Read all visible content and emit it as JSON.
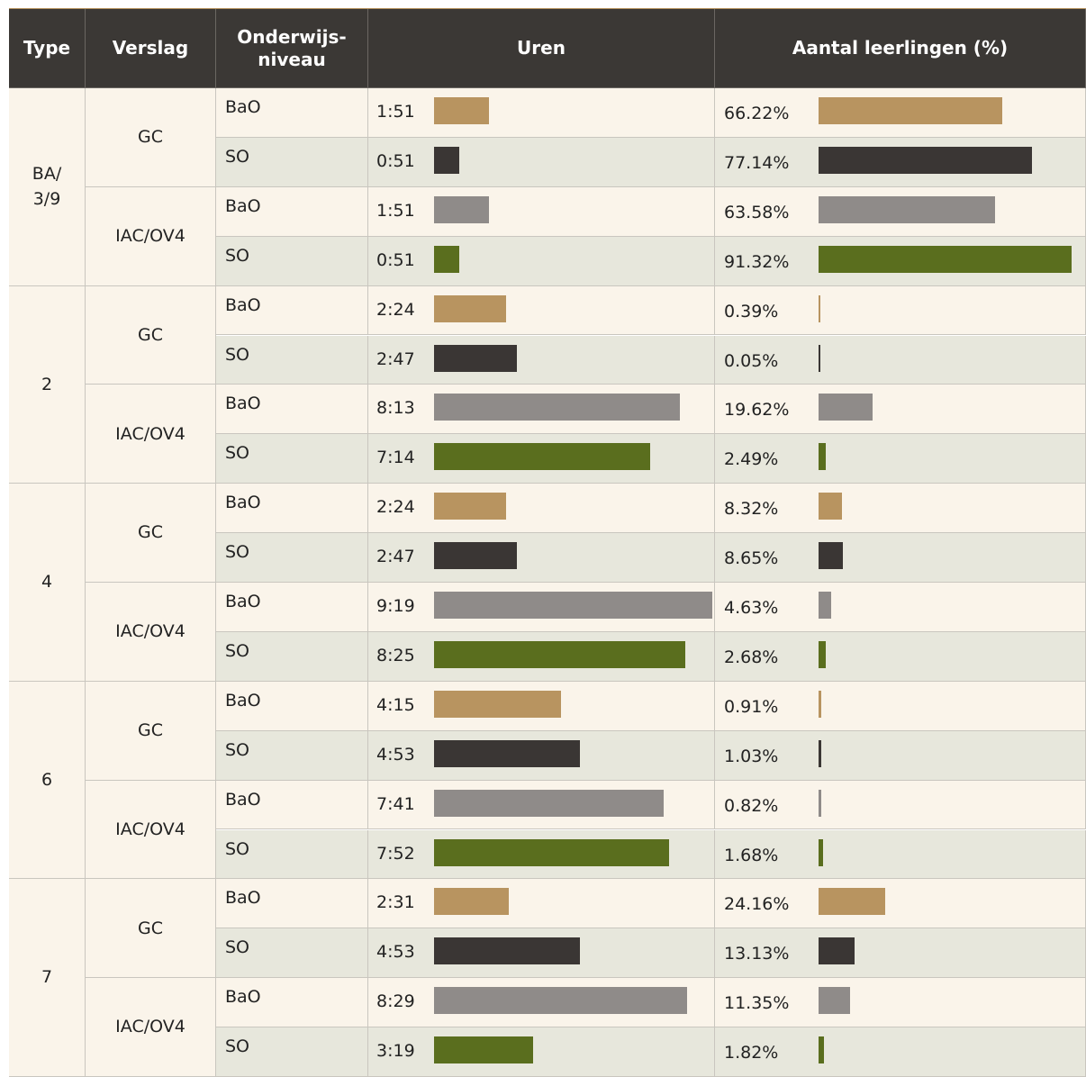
{
  "header": {
    "type": "Type",
    "verslag": "Verslag",
    "niveau": "Onderwijs-\nniveau",
    "uren": "Uren",
    "aantal": "Aantal leerlingen (%)"
  },
  "groups": [
    {
      "type": "BA/\n3/9",
      "verslagen": [
        {
          "name": "GC",
          "rows": [
            {
              "niveau": "BaO",
              "uren": {
                "value": 111,
                "label": "1:51"
              },
              "aantal": {
                "value": 66.22,
                "label": "66.22%"
              }
            },
            {
              "niveau": "SO",
              "uren": {
                "value": 51,
                "label": "0:51"
              },
              "aantal": {
                "value": 77.14,
                "label": "77.14%"
              }
            }
          ]
        },
        {
          "name": "IAC/OV4",
          "rows": [
            {
              "niveau": "BaO",
              "uren": {
                "value": 111,
                "label": "1:51"
              },
              "aantal": {
                "value": 63.58,
                "label": "63.58%"
              }
            },
            {
              "niveau": "SO",
              "uren": {
                "value": 51,
                "label": "0:51"
              },
              "aantal": {
                "value": 91.32,
                "label": "91.32%"
              }
            }
          ]
        }
      ]
    },
    {
      "type": "2",
      "verslagen": [
        {
          "name": "GC",
          "rows": [
            {
              "niveau": "BaO",
              "uren": {
                "value": 144,
                "label": "2:24"
              },
              "aantal": {
                "value": 0.39,
                "label": "0.39%"
              }
            },
            {
              "niveau": "SO",
              "uren": {
                "value": 167,
                "label": "2:47"
              },
              "aantal": {
                "value": 0.05,
                "label": "0.05%"
              }
            }
          ]
        },
        {
          "name": "IAC/OV4",
          "rows": [
            {
              "niveau": "BaO",
              "uren": {
                "value": 493,
                "label": "8:13"
              },
              "aantal": {
                "value": 19.62,
                "label": "19.62%"
              }
            },
            {
              "niveau": "SO",
              "uren": {
                "value": 434,
                "label": "7:14"
              },
              "aantal": {
                "value": 2.49,
                "label": "2.49%"
              }
            }
          ]
        }
      ]
    },
    {
      "type": "4",
      "verslagen": [
        {
          "name": "GC",
          "rows": [
            {
              "niveau": "BaO",
              "uren": {
                "value": 144,
                "label": "2:24"
              },
              "aantal": {
                "value": 8.32,
                "label": "8.32%"
              }
            },
            {
              "niveau": "SO",
              "uren": {
                "value": 167,
                "label": "2:47"
              },
              "aantal": {
                "value": 8.65,
                "label": "8.65%"
              }
            }
          ]
        },
        {
          "name": "IAC/OV4",
          "rows": [
            {
              "niveau": "BaO",
              "uren": {
                "value": 559,
                "label": "9:19"
              },
              "aantal": {
                "value": 4.63,
                "label": "4.63%"
              }
            },
            {
              "niveau": "SO",
              "uren": {
                "value": 505,
                "label": "8:25"
              },
              "aantal": {
                "value": 2.68,
                "label": "2.68%"
              }
            }
          ]
        }
      ]
    },
    {
      "type": "6",
      "verslagen": [
        {
          "name": "GC",
          "rows": [
            {
              "niveau": "BaO",
              "uren": {
                "value": 255,
                "label": "4:15"
              },
              "aantal": {
                "value": 0.91,
                "label": "0.91%"
              }
            },
            {
              "niveau": "SO",
              "uren": {
                "value": 293,
                "label": "4:53"
              },
              "aantal": {
                "value": 1.03,
                "label": "1.03%"
              }
            }
          ]
        },
        {
          "name": "IAC/OV4",
          "rows": [
            {
              "niveau": "BaO",
              "uren": {
                "value": 461,
                "label": "7:41"
              },
              "aantal": {
                "value": 0.82,
                "label": "0.82%"
              }
            },
            {
              "niveau": "SO",
              "uren": {
                "value": 472,
                "label": "7:52"
              },
              "aantal": {
                "value": 1.68,
                "label": "1.68%"
              }
            }
          ]
        }
      ]
    },
    {
      "type": "7",
      "verslagen": [
        {
          "name": "GC",
          "rows": [
            {
              "niveau": "BaO",
              "uren": {
                "value": 151,
                "label": "2:31"
              },
              "aantal": {
                "value": 24.16,
                "label": "24.16%"
              }
            },
            {
              "niveau": "SO",
              "uren": {
                "value": 293,
                "label": "4:53"
              },
              "aantal": {
                "value": 13.13,
                "label": "13.13%"
              }
            }
          ]
        },
        {
          "name": "IAC/OV4",
          "rows": [
            {
              "niveau": "BaO",
              "uren": {
                "value": 509,
                "label": "8:29"
              },
              "aantal": {
                "value": 11.35,
                "label": "11.35%"
              }
            },
            {
              "niveau": "SO",
              "uren": {
                "value": 199,
                "label": "3:19"
              },
              "aantal": {
                "value": 1.82,
                "label": "1.82%"
              }
            }
          ]
        }
      ]
    }
  ]
}
